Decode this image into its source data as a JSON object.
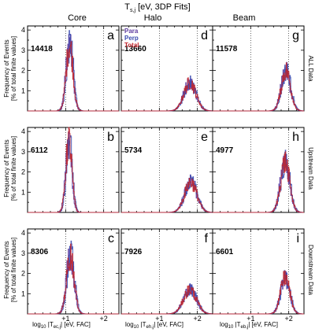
{
  "figure": {
    "title": "T",
    "title_sub": "s,j",
    "title_rest": " [eV, 3DP Fits]"
  },
  "columns": [
    {
      "label": "Core",
      "xlabel_pre": "log",
      "xlabel_base": "10",
      "xlabel_mid": " |T",
      "xlabel_sub": "ec,j",
      "xlabel_post": "| [eV, FAC]"
    },
    {
      "label": "Halo",
      "xlabel_pre": "log",
      "xlabel_base": "10",
      "xlabel_mid": " |T",
      "xlabel_sub": "eh,j",
      "xlabel_post": "| [eV, FAC]"
    },
    {
      "label": "Beam",
      "xlabel_pre": "log",
      "xlabel_base": "10",
      "xlabel_mid": " |T",
      "xlabel_sub": "eb,j",
      "xlabel_post": "| [eV, FAC]"
    }
  ],
  "rows": [
    {
      "label": "ALL Data"
    },
    {
      "label": "Upstream Data"
    },
    {
      "label": "Downstream Data"
    }
  ],
  "ylabel_line1": "Frequency of Events",
  "ylabel_line2": "[% of total finite values]",
  "legend": [
    {
      "name": "Para",
      "color": "#5c3a9e"
    },
    {
      "name": "Perp",
      "color": "#3b4bb0"
    },
    {
      "name": "Total",
      "color": "#c0232b"
    }
  ],
  "chart_data": {
    "type": "area",
    "x_scale": "log10",
    "xlim": [
      0,
      2.4
    ],
    "ylim": [
      0,
      4.2
    ],
    "x_ticks": [
      "+1",
      "+2"
    ],
    "y_ticks": [
      "1",
      "2",
      "3",
      "4"
    ],
    "grid": false,
    "legend_position": "top-left of panel d",
    "panels": [
      {
        "letter": "a",
        "count": "14418",
        "column": "Core",
        "row": "ALL Data",
        "peak_x": 1.1,
        "width": 0.09,
        "peak_y": 3.3
      },
      {
        "letter": "d",
        "count": "13660",
        "column": "Halo",
        "row": "ALL Data",
        "peak_x": 1.8,
        "width": 0.16,
        "peak_y": 1.4
      },
      {
        "letter": "g",
        "count": "11578",
        "column": "Beam",
        "row": "ALL Data",
        "peak_x": 1.92,
        "width": 0.12,
        "peak_y": 2.0
      },
      {
        "letter": "b",
        "count": "6112",
        "column": "Core",
        "row": "Upstream Data",
        "peak_x": 1.08,
        "width": 0.08,
        "peak_y": 3.6
      },
      {
        "letter": "e",
        "count": "5734",
        "column": "Halo",
        "row": "Upstream Data",
        "peak_x": 1.82,
        "width": 0.16,
        "peak_y": 1.5
      },
      {
        "letter": "h",
        "count": "4977",
        "column": "Beam",
        "row": "Upstream Data",
        "peak_x": 1.9,
        "width": 0.12,
        "peak_y": 2.5
      },
      {
        "letter": "c",
        "count": "8306",
        "column": "Core",
        "row": "Downstream Data",
        "peak_x": 1.12,
        "width": 0.1,
        "peak_y": 2.9
      },
      {
        "letter": "f",
        "count": "7926",
        "column": "Halo",
        "row": "Downstream Data",
        "peak_x": 1.8,
        "width": 0.17,
        "peak_y": 1.2
      },
      {
        "letter": "i",
        "count": "6601",
        "column": "Beam",
        "row": "Downstream Data",
        "peak_x": 1.9,
        "width": 0.12,
        "peak_y": 1.8
      }
    ],
    "series": [
      {
        "name": "Para"
      },
      {
        "name": "Perp"
      },
      {
        "name": "Total"
      }
    ]
  }
}
